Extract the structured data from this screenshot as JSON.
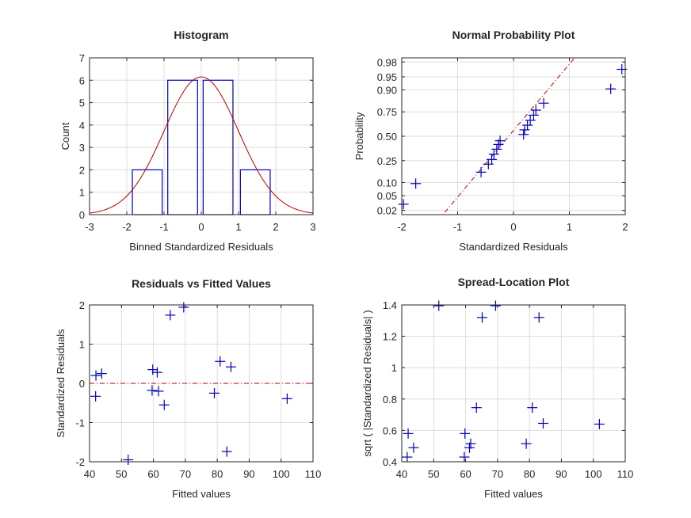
{
  "chart_data": [
    {
      "type": "histogram",
      "title": "Histogram",
      "xlabel": "Binned Standardized Residuals",
      "ylabel": "Count",
      "xlim": [
        -3,
        3
      ],
      "ylim": [
        0,
        7
      ],
      "xticks": [
        "-3",
        "-2",
        "-1",
        "0",
        "1",
        "2",
        "3"
      ],
      "yticks": [
        "0",
        "1",
        "2",
        "3",
        "4",
        "5",
        "6",
        "7"
      ],
      "bars": [
        {
          "x0": -1.85,
          "x1": -1.05,
          "count": 2
        },
        {
          "x0": -0.9,
          "x1": -0.1,
          "count": 6
        },
        {
          "x0": 0.05,
          "x1": 0.85,
          "count": 6
        },
        {
          "x0": 1.05,
          "x1": 1.85,
          "count": 2
        }
      ],
      "normal_curve": {
        "mean": 0,
        "sd": 1,
        "peak": 6.15
      },
      "grid": true,
      "colors": {
        "bars": "#0000bf",
        "curve": "#bf0000"
      }
    },
    {
      "type": "scatter",
      "title": "Normal Probability Plot",
      "xlabel": "Standardized Residuals",
      "ylabel": "Probability",
      "xlim": [
        -2,
        2
      ],
      "yscale": "normal-probability",
      "xticks": [
        "-2",
        "-1",
        "0",
        "1",
        "2"
      ],
      "yticks": [
        "0.02",
        "0.05",
        "0.10",
        "0.25",
        "0.50",
        "0.75",
        "0.90",
        "0.95",
        "0.98"
      ],
      "points": [
        {
          "x": -1.97,
          "p": 0.03
        },
        {
          "x": -1.75,
          "p": 0.095
        },
        {
          "x": -0.58,
          "p": 0.16
        },
        {
          "x": -0.45,
          "p": 0.22
        },
        {
          "x": -0.39,
          "p": 0.26
        },
        {
          "x": -0.35,
          "p": 0.31
        },
        {
          "x": -0.3,
          "p": 0.36
        },
        {
          "x": -0.27,
          "p": 0.41
        },
        {
          "x": -0.24,
          "p": 0.45
        },
        {
          "x": 0.18,
          "p": 0.52
        },
        {
          "x": 0.2,
          "p": 0.57
        },
        {
          "x": 0.25,
          "p": 0.62
        },
        {
          "x": 0.3,
          "p": 0.67
        },
        {
          "x": 0.36,
          "p": 0.72
        },
        {
          "x": 0.4,
          "p": 0.765
        },
        {
          "x": 0.54,
          "p": 0.82
        },
        {
          "x": 1.74,
          "p": 0.905
        },
        {
          "x": 1.94,
          "p": 0.968
        }
      ],
      "reference_line": [
        {
          "x": -1.35,
          "p": 0.01
        },
        {
          "x": 1.25,
          "p": 0.993
        }
      ],
      "grid": true,
      "colors": {
        "points": "#0000bf",
        "line": "#bf0000"
      }
    },
    {
      "type": "scatter",
      "title": "Residuals vs Fitted Values",
      "xlabel": "Fitted values",
      "ylabel": "Standardized Residuals",
      "xlim": [
        40,
        110
      ],
      "ylim": [
        -2,
        2
      ],
      "xticks": [
        "40",
        "50",
        "60",
        "70",
        "80",
        "90",
        "100",
        "110"
      ],
      "yticks": [
        "-2",
        "-1",
        "0",
        "1",
        "2"
      ],
      "points": [
        {
          "x": 41.9,
          "y": -0.33
        },
        {
          "x": 42.0,
          "y": 0.2
        },
        {
          "x": 43.8,
          "y": 0.25
        },
        {
          "x": 52.1,
          "y": -1.95
        },
        {
          "x": 59.6,
          "y": -0.18
        },
        {
          "x": 59.8,
          "y": 0.35
        },
        {
          "x": 61.2,
          "y": 0.28
        },
        {
          "x": 61.6,
          "y": -0.2
        },
        {
          "x": 63.4,
          "y": -0.55
        },
        {
          "x": 65.3,
          "y": 1.74
        },
        {
          "x": 69.5,
          "y": 1.94
        },
        {
          "x": 79.1,
          "y": -0.25
        },
        {
          "x": 80.9,
          "y": 0.56
        },
        {
          "x": 83.0,
          "y": -1.74
        },
        {
          "x": 84.3,
          "y": 0.42
        },
        {
          "x": 101.9,
          "y": -0.39
        }
      ],
      "reference_line": {
        "y": 0
      },
      "grid": true,
      "colors": {
        "points": "#0000bf",
        "line": "#bf0000"
      }
    },
    {
      "type": "scatter",
      "title": "Spread-Location Plot",
      "xlabel": "Fitted values",
      "ylabel": "sqrt ( |Standardized Residuals| )",
      "xlim": [
        40,
        110
      ],
      "ylim": [
        0.4,
        1.4
      ],
      "xticks": [
        "40",
        "50",
        "60",
        "70",
        "80",
        "90",
        "100",
        "110"
      ],
      "yticks": [
        "0.4",
        "0.6",
        "0.8",
        "1",
        "1.2",
        "1.4"
      ],
      "points": [
        {
          "x": 41.7,
          "y": 0.43
        },
        {
          "x": 42.0,
          "y": 0.58
        },
        {
          "x": 43.7,
          "y": 0.49
        },
        {
          "x": 51.6,
          "y": 1.395
        },
        {
          "x": 59.6,
          "y": 0.43
        },
        {
          "x": 59.8,
          "y": 0.58
        },
        {
          "x": 61.2,
          "y": 0.49
        },
        {
          "x": 61.6,
          "y": 0.515
        },
        {
          "x": 63.4,
          "y": 0.745
        },
        {
          "x": 65.2,
          "y": 1.32
        },
        {
          "x": 69.4,
          "y": 1.395
        },
        {
          "x": 79.0,
          "y": 0.515
        },
        {
          "x": 80.9,
          "y": 0.745
        },
        {
          "x": 83.0,
          "y": 1.32
        },
        {
          "x": 84.3,
          "y": 0.645
        },
        {
          "x": 101.9,
          "y": 0.64
        }
      ],
      "grid": true,
      "colors": {
        "points": "#0000bf"
      }
    }
  ]
}
